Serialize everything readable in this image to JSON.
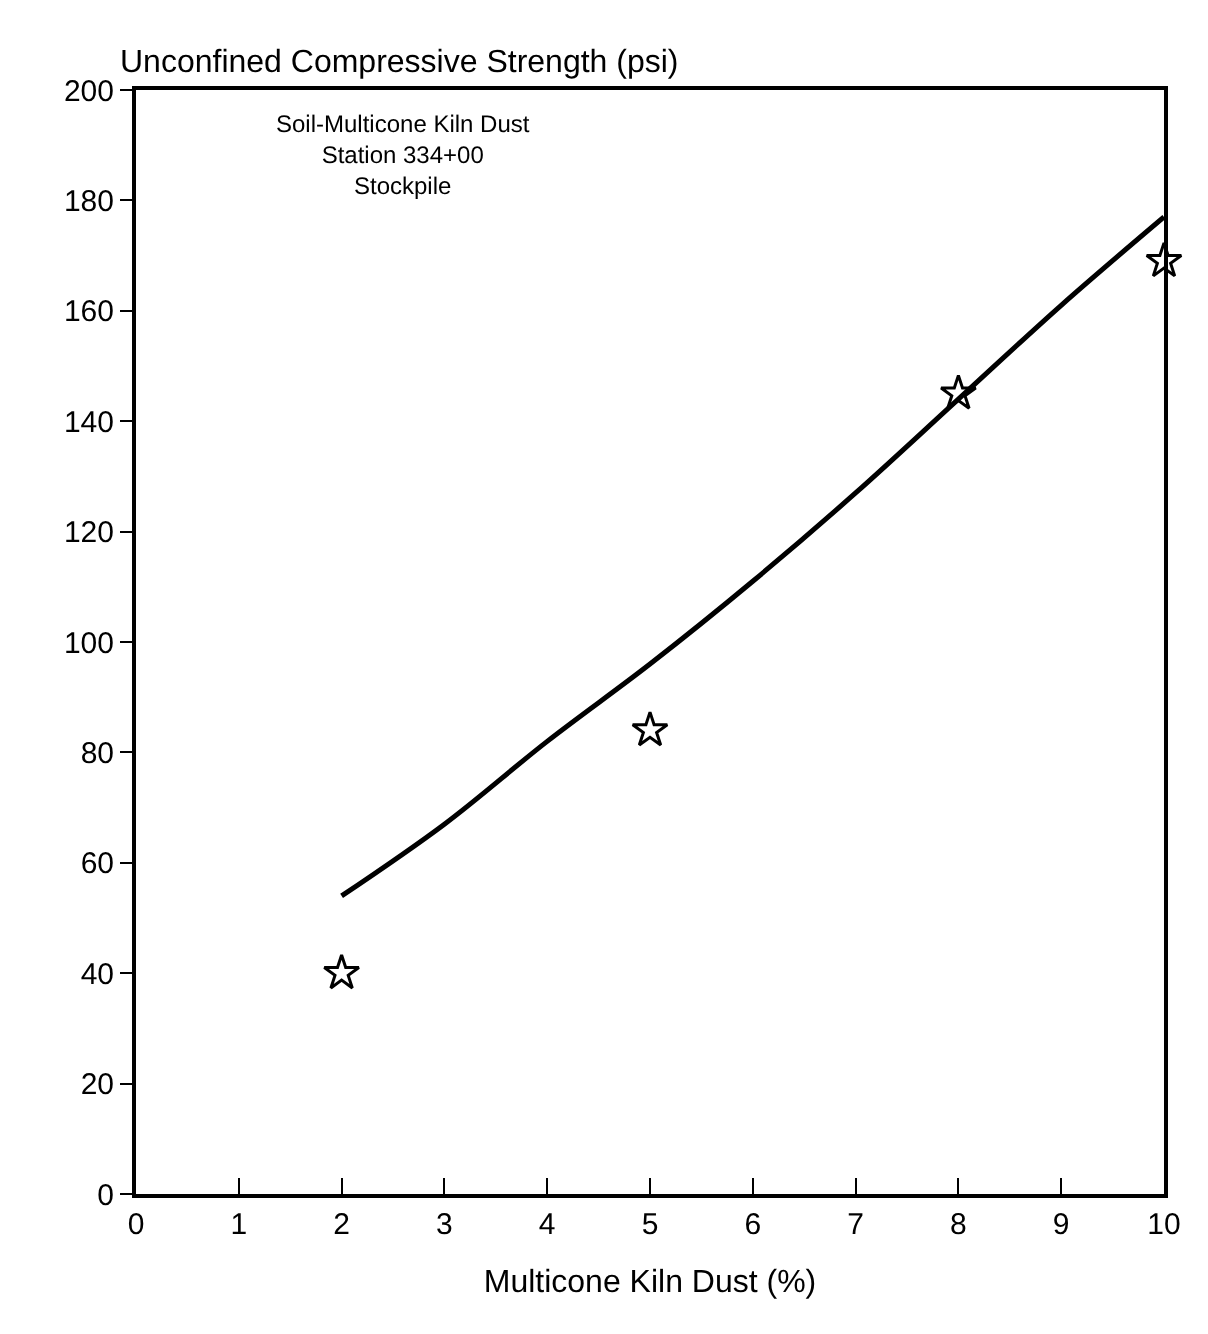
{
  "chart_data": {
    "type": "scatter",
    "ylabel": "Unconfined Compressive Strength (psi)",
    "xlabel": "Multicone Kiln Dust (%)",
    "annotations": [
      "Soil-Multicone Kiln Dust\nStation 334+00\nStockpile"
    ],
    "xlim": [
      0,
      10
    ],
    "xticks": [
      0,
      1,
      2,
      3,
      4,
      5,
      6,
      7,
      8,
      9,
      10
    ],
    "ylim": [
      0,
      200
    ],
    "yticks": [
      0,
      20,
      40,
      60,
      80,
      100,
      120,
      140,
      160,
      180,
      200
    ],
    "legend": false,
    "series": [
      {
        "marker": "star",
        "color": "#000000",
        "x": [
          2,
          5,
          8,
          10
        ],
        "values": [
          40,
          84,
          145,
          169
        ]
      },
      {
        "type": "line",
        "marker": "none",
        "line_style": "solid",
        "color": "#000000",
        "x": [
          2,
          3,
          4,
          5,
          6,
          7,
          8,
          9,
          10
        ],
        "values": [
          54,
          67,
          82,
          96,
          111,
          127,
          144,
          161,
          177
        ]
      }
    ]
  }
}
